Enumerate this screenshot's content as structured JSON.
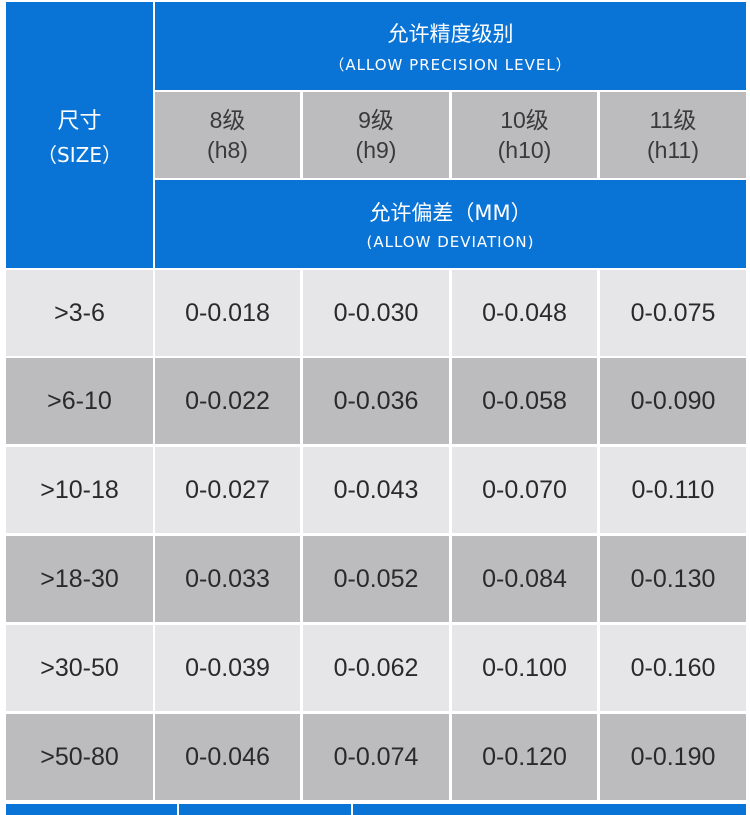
{
  "header": {
    "size_label_cn": "尺寸",
    "size_label_en": "（SIZE）",
    "precision_title_cn": "允许精度级别",
    "precision_title_en": "（ALLOW  PRECISION  LEVEL）",
    "deviation_title_cn": "允许偏差（MM）",
    "deviation_title_en": "(ALLOW  DEVIATION)",
    "levels": [
      {
        "cn": "8级",
        "code": "(h8)"
      },
      {
        "cn": "9级",
        "code": "(h9)"
      },
      {
        "cn": "10级",
        "code": "(h10)"
      },
      {
        "cn": "11级",
        "code": "(h11)"
      }
    ]
  },
  "rows": [
    {
      "size": ">3-6",
      "values": [
        "0-0.018",
        "0-0.030",
        "0-0.048",
        "0-0.075"
      ]
    },
    {
      "size": ">6-10",
      "values": [
        "0-0.022",
        "0-0.036",
        "0-0.058",
        "0-0.090"
      ]
    },
    {
      "size": ">10-18",
      "values": [
        "0-0.027",
        "0-0.043",
        "0-0.070",
        "0-0.110"
      ]
    },
    {
      "size": ">18-30",
      "values": [
        "0-0.033",
        "0-0.052",
        "0-0.084",
        "0-0.130"
      ]
    },
    {
      "size": ">30-50",
      "values": [
        "0-0.039",
        "0-0.062",
        "0-0.100",
        "0-0.160"
      ]
    },
    {
      "size": ">50-80",
      "values": [
        "0-0.046",
        "0-0.074",
        "0-0.120",
        "0-0.190"
      ]
    }
  ],
  "colors": {
    "header_blue": "#0a74d6",
    "row_light": "#e6e6e8",
    "row_dark": "#bcbcbf"
  }
}
